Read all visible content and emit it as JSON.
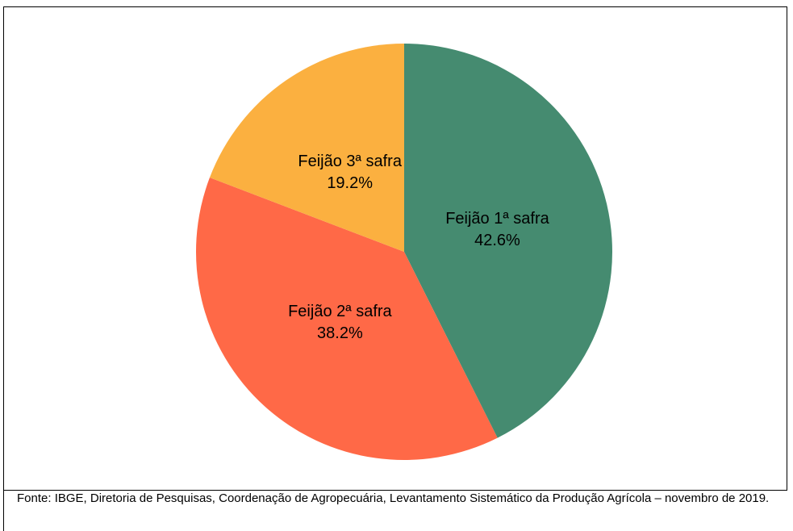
{
  "chart_data": {
    "type": "pie",
    "categories": [
      "Feijão 1ª safra",
      "Feijão 2ª safra",
      "Feijão 3ª safra"
    ],
    "values": [
      42.6,
      38.2,
      19.2
    ],
    "value_labels": [
      "42.6%",
      "38.2%",
      "19.2%"
    ],
    "colors": [
      "#458b70",
      "#ff6947",
      "#fbb040"
    ],
    "source": "Fonte: IBGE, Diretoria de Pesquisas, Coordenação de Agropecuária, Levantamento Sistemático da Produção Agrícola – novembro de 2019."
  }
}
